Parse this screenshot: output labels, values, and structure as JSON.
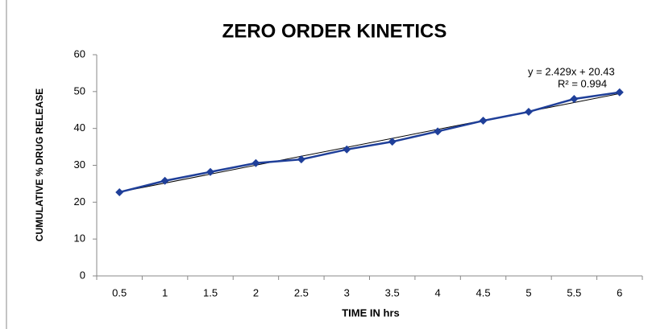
{
  "chart_data": {
    "type": "line",
    "title": "ZERO ORDER KINETICS",
    "x_label": "TIME IN hrs",
    "y_label": "CUMULATIVE % DRUG RELEASE",
    "annotations": [
      "y = 2.429x + 20.43",
      "R² = 0.994"
    ],
    "categories": [
      "0.5",
      "1",
      "1.5",
      "2",
      "2.5",
      "3",
      "3.5",
      "4",
      "4.5",
      "5",
      "5.5",
      "6"
    ],
    "series": [
      {
        "color": "#1f3f99",
        "values": [
          22.7,
          25.8,
          28.2,
          30.6,
          31.6,
          34.3,
          36.4,
          39.2,
          42.1,
          44.5,
          48.0,
          49.8
        ]
      }
    ],
    "trendline": true,
    "ylim": [
      0,
      60
    ],
    "yticks": [
      0,
      10,
      20,
      30,
      40,
      50,
      60
    ]
  }
}
